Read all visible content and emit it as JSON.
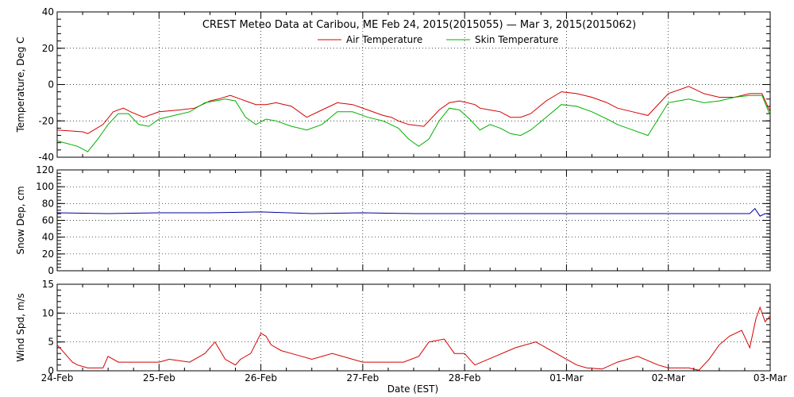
{
  "title": "CREST Meteo Data at Caribou, ME   Feb 24, 2015(2015055) — Mar  3, 2015(2015062)",
  "xlabel": "Date (EST)",
  "x_ticks": [
    "24-Feb",
    "25-Feb",
    "26-Feb",
    "27-Feb",
    "28-Feb",
    "01-Mar",
    "02-Mar",
    "03-Mar"
  ],
  "colors": {
    "air": "#d40000",
    "skin": "#00b000",
    "snow": "#0000a0",
    "wind": "#d40000"
  },
  "chart_data": [
    {
      "type": "line",
      "ylabel": "Temperature, Deg C",
      "ylim": [
        -40,
        40
      ],
      "yticks": [
        -40,
        -20,
        0,
        20,
        40
      ],
      "x_unit": "days since 24-Feb 00:00 EST",
      "xlim": [
        0,
        7
      ],
      "grid": true,
      "legend": "top-center",
      "series": [
        {
          "name": "Air Temperature",
          "color": "#d40000",
          "x": [
            0,
            0.25,
            0.3,
            0.45,
            0.55,
            0.65,
            0.72,
            0.85,
            1.0,
            1.2,
            1.35,
            1.5,
            1.58,
            1.7,
            1.8,
            1.95,
            2.05,
            2.15,
            2.3,
            2.45,
            2.6,
            2.75,
            2.9,
            3.05,
            3.2,
            3.28,
            3.35,
            3.45,
            3.6,
            3.75,
            3.85,
            3.95,
            4.1,
            4.15,
            4.25,
            4.35,
            4.45,
            4.55,
            4.65,
            4.8,
            4.95,
            5.1,
            5.25,
            5.4,
            5.5,
            5.65,
            5.8,
            6.0,
            6.2,
            6.35,
            6.5,
            6.65,
            6.8,
            6.92,
            7.0
          ],
          "y": [
            -25,
            -26,
            -27,
            -22,
            -15,
            -13,
            -15,
            -18,
            -15,
            -14,
            -13,
            -9,
            -8,
            -6,
            -8,
            -11,
            -11,
            -10,
            -12,
            -18,
            -14,
            -10,
            -11,
            -14,
            -17,
            -18,
            -20,
            -22,
            -23,
            -14,
            -10,
            -9,
            -11,
            -13,
            -14,
            -15,
            -18,
            -18,
            -16,
            -9,
            -4,
            -5,
            -7,
            -10,
            -13,
            -15,
            -17,
            -5,
            -1,
            -5,
            -7,
            -7,
            -5,
            -5,
            -15
          ]
        },
        {
          "name": "Skin Temperature",
          "color": "#00b000",
          "x": [
            0,
            0.2,
            0.3,
            0.4,
            0.5,
            0.6,
            0.7,
            0.8,
            0.9,
            1.0,
            1.15,
            1.3,
            1.45,
            1.55,
            1.65,
            1.75,
            1.85,
            1.95,
            2.05,
            2.15,
            2.3,
            2.45,
            2.6,
            2.75,
            2.9,
            3.05,
            3.2,
            3.35,
            3.45,
            3.55,
            3.65,
            3.75,
            3.85,
            3.95,
            4.05,
            4.15,
            4.25,
            4.35,
            4.45,
            4.55,
            4.65,
            4.8,
            4.95,
            5.1,
            5.25,
            5.4,
            5.5,
            5.65,
            5.8,
            6.0,
            6.2,
            6.35,
            6.5,
            6.65,
            6.8,
            6.92,
            7.0
          ],
          "y": [
            -31,
            -34,
            -37,
            -30,
            -22,
            -16,
            -16,
            -22,
            -23,
            -19,
            -17,
            -15,
            -10,
            -9,
            -8,
            -9,
            -18,
            -22,
            -19,
            -20,
            -23,
            -25,
            -22,
            -15,
            -15,
            -18,
            -20,
            -24,
            -30,
            -34,
            -30,
            -20,
            -13,
            -14,
            -19,
            -25,
            -22,
            -24,
            -27,
            -28,
            -25,
            -18,
            -11,
            -12,
            -15,
            -19,
            -22,
            -25,
            -28,
            -10,
            -8,
            -10,
            -9,
            -7,
            -6,
            -6,
            -17
          ]
        }
      ]
    },
    {
      "type": "line",
      "ylabel": "Snow Dep, cm",
      "ylim": [
        0,
        120
      ],
      "yticks": [
        0,
        20,
        40,
        60,
        80,
        100,
        120
      ],
      "x_unit": "days since 24-Feb 00:00 EST",
      "xlim": [
        0,
        7
      ],
      "grid": true,
      "series": [
        {
          "color": "#0000a0",
          "x": [
            0,
            0.5,
            1.0,
            1.5,
            2.0,
            2.5,
            3.0,
            3.5,
            4.0,
            4.5,
            5.0,
            5.5,
            6.0,
            6.5,
            6.8,
            6.85,
            6.9,
            6.95,
            7.0
          ],
          "y": [
            69,
            68,
            69,
            69,
            70,
            68,
            69,
            68,
            68,
            68,
            68,
            68,
            68,
            68,
            68,
            74,
            65,
            68,
            67
          ]
        }
      ]
    },
    {
      "type": "line",
      "ylabel": "Wind Spd, m/s",
      "ylim": [
        0,
        15
      ],
      "yticks": [
        0,
        5,
        10,
        15
      ],
      "x_unit": "days since 24-Feb 00:00 EST",
      "xlim": [
        0,
        7
      ],
      "grid": true,
      "series": [
        {
          "color": "#d40000",
          "x": [
            0,
            0.05,
            0.1,
            0.15,
            0.2,
            0.3,
            0.45,
            0.5,
            0.6,
            0.8,
            1.0,
            1.1,
            1.3,
            1.45,
            1.55,
            1.65,
            1.75,
            1.8,
            1.9,
            2.0,
            2.05,
            2.1,
            2.2,
            2.3,
            2.4,
            2.5,
            2.7,
            3.0,
            3.2,
            3.4,
            3.55,
            3.65,
            3.8,
            3.9,
            4.0,
            4.1,
            4.3,
            4.5,
            4.7,
            4.8,
            4.95,
            5.1,
            5.2,
            5.35,
            5.5,
            5.7,
            5.9,
            6.0,
            6.2,
            6.3,
            6.4,
            6.5,
            6.6,
            6.72,
            6.8,
            6.86,
            6.9,
            6.95,
            7.0
          ],
          "y": [
            4.5,
            3.5,
            2.5,
            1.5,
            1,
            0.5,
            0.5,
            2.5,
            1.5,
            1.5,
            1.5,
            2,
            1.5,
            3,
            5,
            2,
            1,
            2,
            3,
            6.5,
            6,
            4.5,
            3.5,
            3,
            2.5,
            2,
            3,
            1.5,
            1.5,
            1.5,
            2.5,
            5,
            5.5,
            3,
            3,
            1,
            2.5,
            4,
            5,
            4,
            2.5,
            1,
            0.5,
            0.3,
            1.5,
            2.5,
            1,
            0.5,
            0.5,
            0.1,
            2,
            4.5,
            6,
            7,
            4,
            9,
            11,
            8.5,
            9.5
          ]
        }
      ]
    }
  ]
}
